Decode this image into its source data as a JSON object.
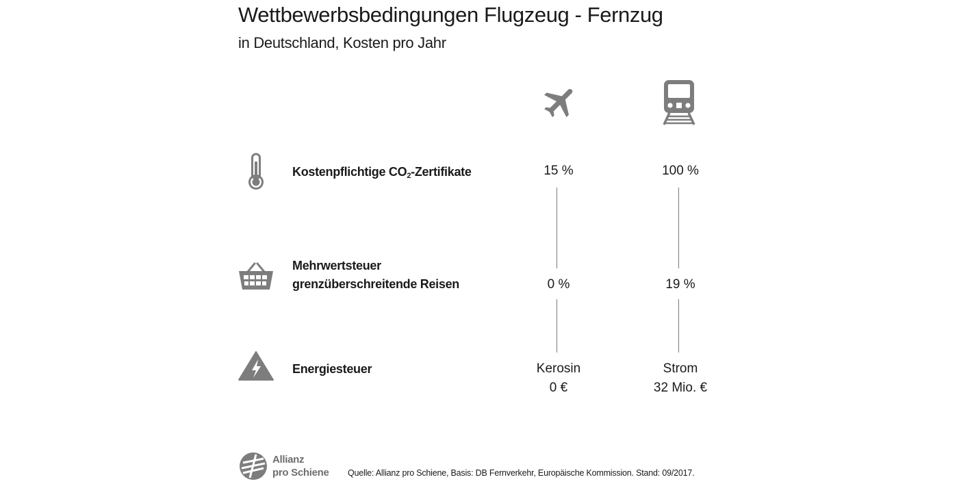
{
  "title": "Wettbewerbsbedingungen Flugzeug - Fernzug",
  "subtitle": "in Deutschland, Kosten pro Jahr",
  "columns": {
    "plane_icon": "airplane-icon",
    "train_icon": "train-icon"
  },
  "rows": [
    {
      "icon": "thermometer-icon",
      "label_main": "Kostenpflichtige CO",
      "label_sub": "2",
      "label_suffix": "-Zertifikate",
      "plane_value": "15 %",
      "train_value": "100 %"
    },
    {
      "icon": "shopping-basket-icon",
      "label_line1": "Mehrwertsteuer",
      "label_line2": "grenzüberschreitende Reisen",
      "plane_value": "0 %",
      "train_value": "19 %"
    },
    {
      "icon": "lightning-warning-icon",
      "label": "Energiesteuer",
      "plane_value_line1": "Kerosin",
      "plane_value_line2": "0 €",
      "train_value_line1": "Strom",
      "train_value_line2": "32 Mio. €"
    }
  ],
  "logo": {
    "line1": "Allianz",
    "line2": "pro Schiene"
  },
  "source": "Quelle: Allianz pro Schiene, Basis: DB Fernverkehr, Europäische Kommission. Stand: 09/2017.",
  "colors": {
    "icon": "#7d7d7d",
    "text": "#1a1a1a",
    "line": "#7a7a7a",
    "logo": "#6e6e6e"
  }
}
